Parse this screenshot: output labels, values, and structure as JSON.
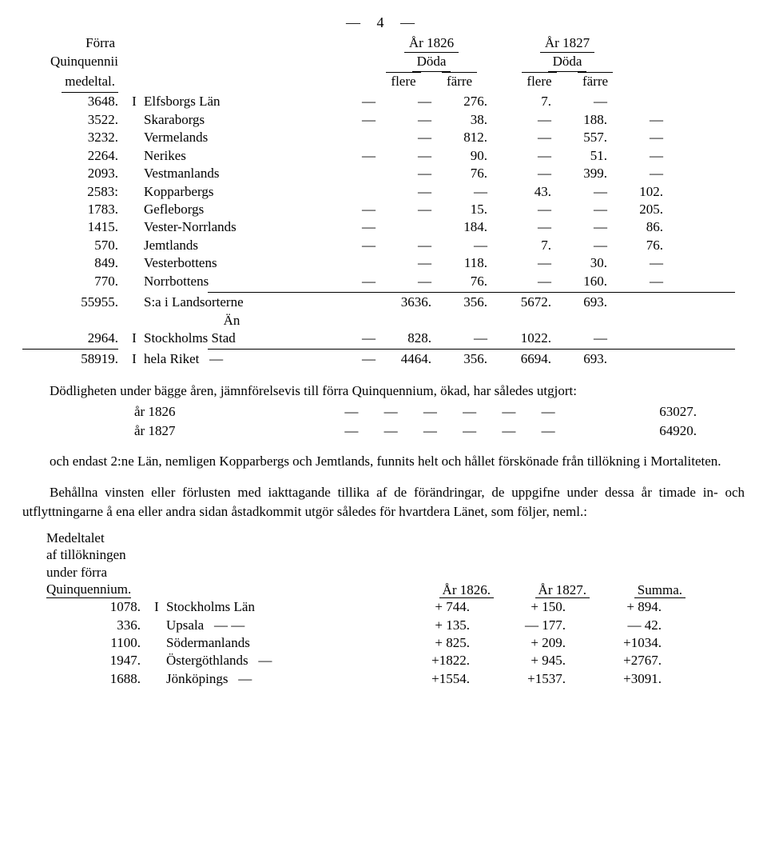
{
  "page_number_line": "— 4 —",
  "headers": {
    "forra": "Förra",
    "quinq": "Quinquennii",
    "medel": "medeltal.",
    "year_1826": "År 1826",
    "year_1827": "År 1827",
    "doda": "Döda",
    "flere": "flere",
    "farre": "färre",
    "an": "Än"
  },
  "t1": {
    "rows": [
      {
        "qu": "3648.",
        "rom": "I",
        "name": "Elfsborgs Län",
        "a1": "—",
        "a2": "—",
        "a3": "276.",
        "b1": "7.",
        "b2": "—"
      },
      {
        "qu": "3522.",
        "rom": "",
        "name": "Skaraborgs",
        "a1": "—",
        "a2": "—",
        "a3": "38.",
        "b1": "—",
        "b2": "188.",
        "b3": "—"
      },
      {
        "qu": "3232.",
        "rom": "",
        "name": "Vermelands",
        "a1": "",
        "a2": "—",
        "a3": "812.",
        "b1": "—",
        "b2": "557.",
        "b3": "—"
      },
      {
        "qu": "2264.",
        "rom": "",
        "name": "Nerikes",
        "a1": "—",
        "a2": "—",
        "a3": "90.",
        "b1": "—",
        "b2": "51.",
        "b3": "—"
      },
      {
        "qu": "2093.",
        "rom": "",
        "name": "Vestmanlands",
        "a1": "",
        "a2": "—",
        "a3": "76.",
        "b1": "—",
        "b2": "399.",
        "b3": "—"
      },
      {
        "qu": "2583:",
        "rom": "",
        "name": "Kopparbergs",
        "a1": "",
        "a2": "—",
        "a3": "—",
        "b1": "43.",
        "b2": "—",
        "b3": "102."
      },
      {
        "qu": "1783.",
        "rom": "",
        "name": "Gefleborgs",
        "a1": "—",
        "a2": "—",
        "a3": "15.",
        "b1": "—",
        "b2": "—",
        "b3": "205."
      },
      {
        "qu": "1415.",
        "rom": "",
        "name": "Vester-Norrlands",
        "a1": "—",
        "a2": "",
        "a3": "184.",
        "b1": "—",
        "b2": "—",
        "b3": "86."
      },
      {
        "qu": "570.",
        "rom": "",
        "name": "Jemtlands",
        "a1": "—",
        "a2": "—",
        "a3": "—",
        "b1": "7.",
        "b2": "—",
        "b3": "76."
      },
      {
        "qu": "849.",
        "rom": "",
        "name": "Vesterbottens",
        "a1": "",
        "a2": "—",
        "a3": "118.",
        "b1": "—",
        "b2": "30.",
        "b3": "—"
      },
      {
        "qu": "770.",
        "rom": "",
        "name": "Norrbottens",
        "a1": "—",
        "a2": "—",
        "a3": "76.",
        "b1": "—",
        "b2": "160.",
        "b3": "—"
      }
    ],
    "sum1": {
      "qu": "55955.",
      "name": "S:a i Landsorterne",
      "a3": "3636.",
      "b1": "356.",
      "b2": "5672.",
      "b3": "693."
    },
    "stk": {
      "qu": "2964.",
      "rom": "I",
      "name": "Stockholms Stad",
      "a2": "—",
      "a3": "828.",
      "b1": "—",
      "b2": "1022.",
      "b3": "—"
    },
    "riket": {
      "qu": "58919.",
      "rom": "I",
      "name": "hela Riket",
      "a1": "—",
      "a2": "—",
      "a3": "4464.",
      "b1": "356.",
      "b2": "6694.",
      "b3": "693."
    }
  },
  "para1_a": "Dödligheten under bägge åren, jämnförelsevis till förra Quinquennium, ökad, har således utgjort:",
  "years": [
    {
      "label": "år 1826",
      "dashes": "— — — — — —",
      "value": "63027."
    },
    {
      "label": "år 1827",
      "dashes": "— — — — — —",
      "value": "64920."
    }
  ],
  "para2": "och endast 2:ne Län, nemligen Kopparbergs och Jemtlands, funnits helt och hållet förskönade från tillökning i Mortaliteten.",
  "para3": "Behållna vinsten eller förlusten med iakttagande tillika af de förändringar, de uppgifne under dessa år timade in- och utflyttningarne å ena eller andra sidan åstadkommit utgör således för hvartdera Länet, som följer, neml.:",
  "medel": {
    "l1": "Medeltalet",
    "l2": "af tillökningen",
    "l3": "under förra",
    "l4": "Quinquennium."
  },
  "t2_headers": {
    "y1": "År 1826.",
    "y2": "År 1827.",
    "y3": "Summa."
  },
  "t2": [
    {
      "qu": "1078.",
      "rom": "I",
      "name": "Stockholms Län",
      "y1": "+ 744.",
      "y2": "+ 150.",
      "y3": "+ 894."
    },
    {
      "qu": "336.",
      "rom": "",
      "name": "Upsala",
      "dash": "— —",
      "y1": "+ 135.",
      "y2": "— 177.",
      "y3": "— 42."
    },
    {
      "qu": "1100.",
      "rom": "",
      "name": "Södermanlands",
      "dash": "",
      "y1": "+ 825.",
      "y2": "+ 209.",
      "y3": "+1034."
    },
    {
      "qu": "1947.",
      "rom": "",
      "name": "Östergöthlands",
      "dash": "—",
      "y1": "+1822.",
      "y2": "+ 945.",
      "y3": "+2767."
    },
    {
      "qu": "1688.",
      "rom": "",
      "name": "Jönköpings",
      "dash": "—",
      "y1": "+1554.",
      "y2": "+1537.",
      "y3": "+3091."
    }
  ]
}
